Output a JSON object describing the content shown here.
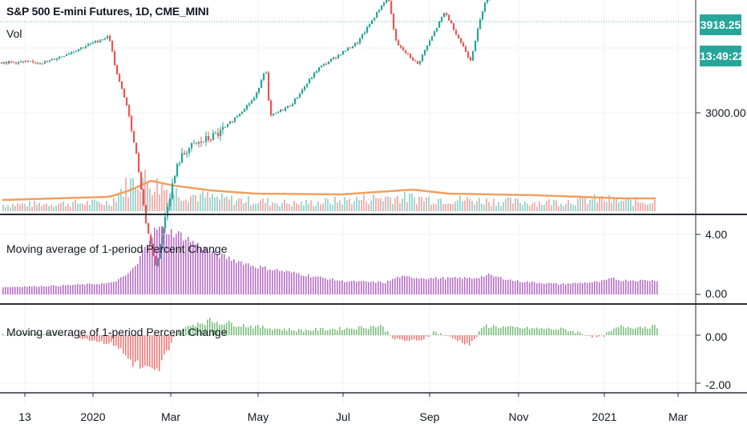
{
  "header": {
    "symbol_title": "S&P 500 E-mini Futures, 1D, CME_MINI",
    "vol_label": "Vol"
  },
  "badges": {
    "last_price": "3918.25",
    "countdown": "13:49:22"
  },
  "colors": {
    "up": "#26a69a",
    "down": "#ef5350",
    "vol_up": "#9fd8d2",
    "vol_down": "#f5b2b0",
    "vol_ma": "#f0a060",
    "pane2_bars": "#b76fc8",
    "pane3_up": "#7cbf7c",
    "pane3_down": "#ef7a78",
    "badge": "#26a69a"
  },
  "chart_data": [
    {
      "type": "line",
      "title": "S&P 500 E-mini Futures, 1D, CME_MINI",
      "subtitle": "Vol",
      "x_ticks": [
        "13",
        "2020",
        "Mar",
        "May",
        "Jul",
        "Sep",
        "Nov",
        "2021",
        "Mar"
      ],
      "y_ticks": [
        "3000.00"
      ],
      "ylim": [
        2200,
        4000
      ],
      "last_value": 3918.25,
      "series": [
        {
          "x": [
            "2020-01-06",
            "2020-02-19",
            "2020-02-24",
            "2020-03-02",
            "2020-03-09",
            "2020-03-16",
            "2020-03-23",
            "2020-03-31",
            "2020-04-08",
            "2020-04-14",
            "2020-05-07",
            "2020-06-01",
            "2020-06-08",
            "2020-06-11",
            "2020-06-26",
            "2020-07-15",
            "2020-08-12",
            "2020-09-02",
            "2020-09-08",
            "2020-09-23",
            "2020-10-12",
            "2020-10-30",
            "2020-11-09",
            "2020-12-01",
            "2021-01-04",
            "2021-01-08",
            "2021-01-29",
            "2021-02-12"
          ],
          "values": [
            3250,
            3380,
            3200,
            3050,
            2800,
            2450,
            2230,
            2550,
            2760,
            2820,
            2900,
            3080,
            3230,
            2980,
            3040,
            3220,
            3350,
            3580,
            3340,
            3240,
            3500,
            3260,
            3550,
            3660,
            3700,
            3800,
            3710,
            3918
          ]
        }
      ]
    },
    {
      "type": "bar",
      "title": "Moving average of 1-period Percent Change",
      "y_ticks": [
        "4.00",
        "0.00"
      ],
      "ylim": [
        -0.3,
        4.8
      ],
      "series": [
        {
          "x": [
            "2019-12-10",
            "2020-01-15",
            "2020-02-20",
            "2020-03-01",
            "2020-03-10",
            "2020-03-16",
            "2020-03-24",
            "2020-04-10",
            "2020-05-01",
            "2020-06-01",
            "2020-07-01",
            "2020-08-01",
            "2020-08-31",
            "2020-09-10",
            "2020-10-01",
            "2020-11-01",
            "2020-11-12",
            "2020-12-01",
            "2021-01-01",
            "2021-01-29",
            "2021-02-08",
            "2021-02-12"
          ],
          "values": [
            0.5,
            0.6,
            0.75,
            1.2,
            2.0,
            3.5,
            4.5,
            4.0,
            2.8,
            1.9,
            1.4,
            0.9,
            0.8,
            1.2,
            1.1,
            1.1,
            1.3,
            0.9,
            0.7,
            0.85,
            1.1,
            0.95
          ]
        }
      ]
    },
    {
      "type": "bar",
      "title": "Moving average of 1-period Percent Change",
      "y_ticks": [
        "0.00",
        "-2.00"
      ],
      "ylim": [
        -2.15,
        0.85
      ],
      "series": [
        {
          "x": [
            "2019-12-10",
            "2020-01-15",
            "2020-02-24",
            "2020-03-02",
            "2020-03-09",
            "2020-03-16",
            "2020-03-23",
            "2020-04-06",
            "2020-04-20",
            "2020-05-01",
            "2020-06-01",
            "2020-07-01",
            "2020-08-10",
            "2020-08-28",
            "2020-09-08",
            "2020-09-24",
            "2020-10-05",
            "2020-10-30",
            "2020-11-09",
            "2020-12-01",
            "2021-01-04",
            "2021-01-29",
            "2021-02-12"
          ],
          "values": [
            0.05,
            0.1,
            -0.4,
            -0.9,
            -1.2,
            -1.5,
            -1.7,
            0.1,
            0.5,
            0.6,
            0.35,
            0.2,
            0.3,
            0.4,
            -0.2,
            -0.25,
            0.15,
            -0.4,
            0.4,
            0.3,
            0.25,
            -0.1,
            0.35
          ]
        }
      ]
    }
  ],
  "panes": {
    "pane2_title": "Moving average of 1-period Percent Change",
    "pane3_title": "Moving average of 1-period Percent Change"
  },
  "axis": {
    "right_main": "3000.00",
    "right_p2_top": "4.00",
    "right_p2_bottom": "0.00",
    "right_p3_top": "0.00",
    "right_p3_bottom": "-2.00",
    "x_labels": [
      "13",
      "2020",
      "Mar",
      "May",
      "Jul",
      "Sep",
      "Nov",
      "2021",
      "Mar"
    ]
  }
}
